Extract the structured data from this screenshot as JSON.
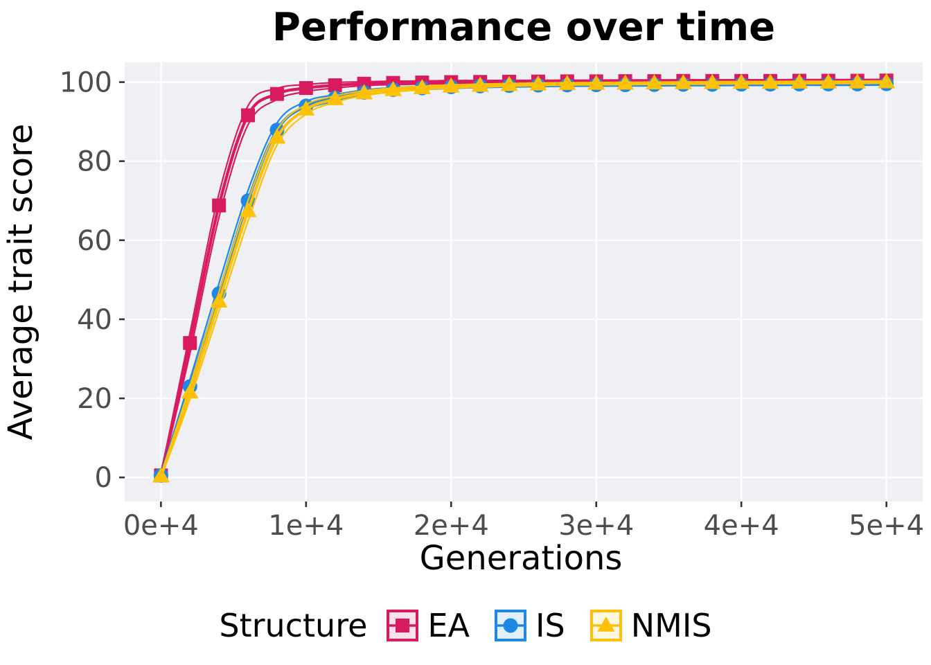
{
  "style": {
    "panel_bg": "#EFF0F4",
    "grid_color": "#FFFFFF",
    "tick_color": "#333333",
    "tick_label_color": "#4D4D4D",
    "key_tint_alpha": 0.13
  },
  "chart_data": {
    "type": "line",
    "title": "Performance over time",
    "xlabel": "Generations",
    "ylabel": "Average trait score",
    "legend_title": "Structure",
    "legend_position": "bottom",
    "grid": "major-only",
    "xlim": [
      -2500,
      52500
    ],
    "ylim": [
      -6.1,
      105
    ],
    "x_ticks": [
      0,
      10000,
      20000,
      30000,
      40000,
      50000
    ],
    "x_tick_labels": [
      "0e+4",
      "1e+4",
      "2e+4",
      "3e+4",
      "4e+4",
      "5e+4"
    ],
    "y_ticks": [
      0,
      20,
      40,
      60,
      80,
      100
    ],
    "y_tick_labels": [
      "0",
      "20",
      "40",
      "60",
      "80",
      "100"
    ],
    "x": [
      0,
      2000,
      4000,
      6000,
      8000,
      10000,
      12000,
      14000,
      16000,
      18000,
      20000,
      22000,
      24000,
      26000,
      28000,
      30000,
      32000,
      34000,
      36000,
      38000,
      40000,
      42000,
      44000,
      46000,
      48000,
      50000
    ],
    "series": [
      {
        "name": "EA",
        "marker": "square",
        "color": "#D81B60",
        "values": [
          0.5,
          34,
          68.8,
          91.6,
          97.0,
          98.5,
          99.2,
          99.6,
          99.8,
          99.9,
          100.0,
          100.05,
          100.1,
          100.15,
          100.2,
          100.2,
          100.25,
          100.25,
          100.3,
          100.3,
          100.3,
          100.3,
          100.35,
          100.35,
          100.35,
          100.4
        ],
        "spread": [
          0.4,
          2.6,
          3.0,
          2.4,
          1.4,
          0.9,
          0.7,
          0.5,
          0.45,
          0.4,
          0.4,
          0.35,
          0.35,
          0.3,
          0.3,
          0.3,
          0.3,
          0.3,
          0.3,
          0.3,
          0.3,
          0.3,
          0.3,
          0.3,
          0.3,
          0.3
        ]
      },
      {
        "name": "IS",
        "marker": "circle",
        "color": "#1E88E5",
        "values": [
          0.5,
          23,
          46.5,
          70,
          87.9,
          94.0,
          96.0,
          97.4,
          98.1,
          98.5,
          98.8,
          99.0,
          99.1,
          99.2,
          99.25,
          99.3,
          99.3,
          99.35,
          99.4,
          99.4,
          99.45,
          99.45,
          99.5,
          99.5,
          99.5,
          99.55
        ],
        "spread": [
          0.4,
          1.8,
          2.6,
          2.6,
          1.8,
          1.1,
          0.8,
          0.6,
          0.5,
          0.45,
          0.4,
          0.4,
          0.35,
          0.35,
          0.3,
          0.3,
          0.3,
          0.3,
          0.3,
          0.3,
          0.3,
          0.3,
          0.3,
          0.3,
          0.3,
          0.3
        ]
      },
      {
        "name": "NMIS",
        "marker": "triangle",
        "color": "#FFC107",
        "values": [
          0.3,
          21.5,
          44.5,
          67.4,
          86.0,
          93.1,
          95.7,
          97.2,
          98.0,
          98.5,
          98.9,
          99.1,
          99.3,
          99.45,
          99.55,
          99.6,
          99.65,
          99.7,
          99.75,
          99.8,
          99.85,
          99.85,
          99.9,
          99.9,
          99.95,
          100.0
        ],
        "spread": [
          0.4,
          1.7,
          2.4,
          2.6,
          1.9,
          1.2,
          0.8,
          0.6,
          0.5,
          0.45,
          0.4,
          0.4,
          0.35,
          0.35,
          0.3,
          0.3,
          0.3,
          0.3,
          0.3,
          0.3,
          0.3,
          0.3,
          0.3,
          0.3,
          0.3,
          0.3
        ]
      }
    ]
  }
}
